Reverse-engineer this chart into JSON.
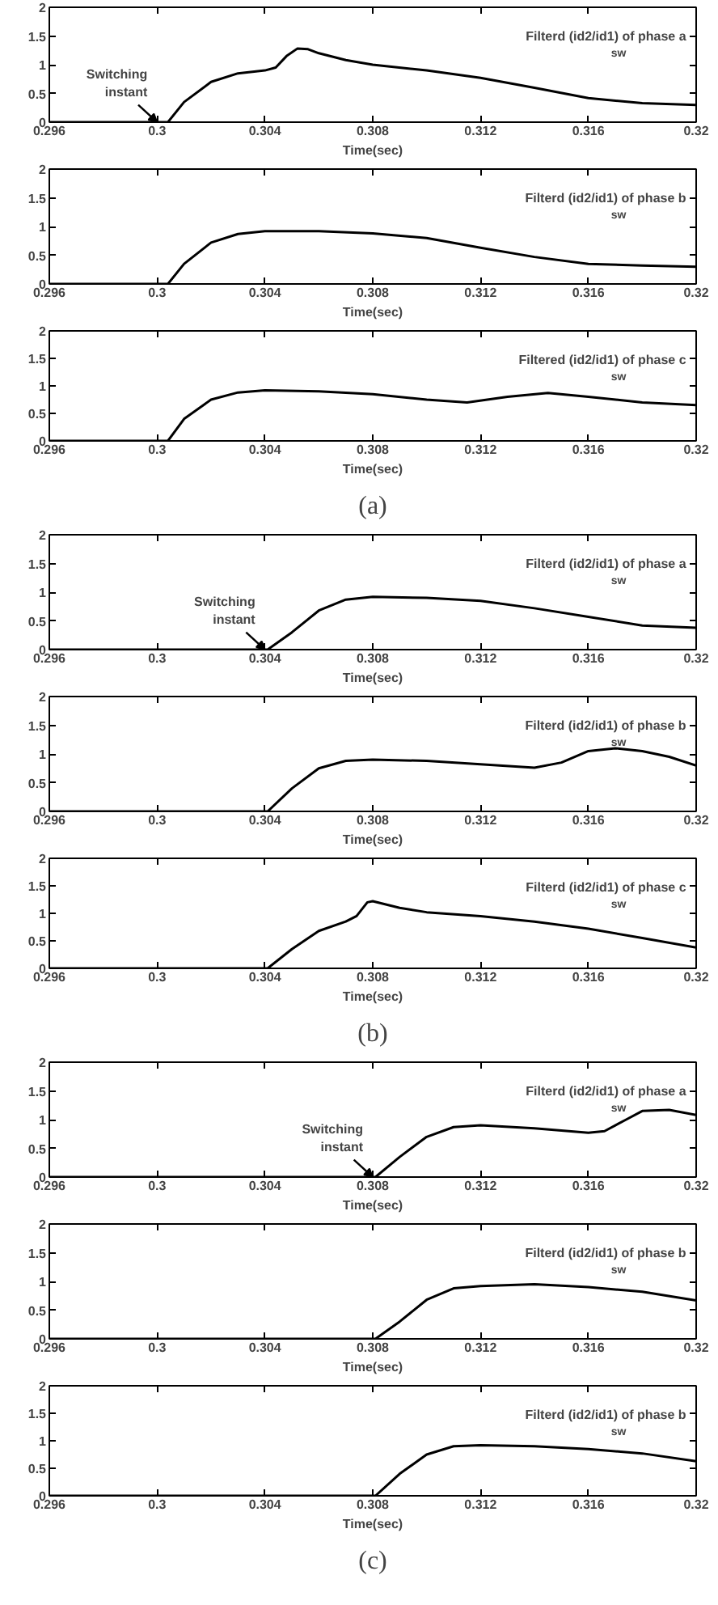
{
  "chart_data": [
    {
      "type": "line",
      "xlabel": "Time(sec)",
      "xlim": [
        0.296,
        0.32
      ],
      "xticks": [
        0.296,
        0.3,
        0.304,
        0.308,
        0.312,
        0.316,
        0.32
      ],
      "ylim": [
        0,
        2
      ],
      "yticks": [
        0,
        0.5,
        1,
        1.5,
        2
      ],
      "grid": false,
      "line_style": "solid",
      "x": [
        0.296,
        0.2998,
        0.3004,
        0.301,
        0.302,
        0.303,
        0.304,
        0.3044,
        0.3048,
        0.3052,
        0.3056,
        0.306,
        0.307,
        0.308,
        0.31,
        0.312,
        0.314,
        0.316,
        0.318,
        0.32
      ],
      "series": [
        {
          "color": "#000000",
          "values": [
            0,
            0,
            0,
            0.35,
            0.7,
            0.85,
            0.9,
            0.95,
            1.15,
            1.28,
            1.27,
            1.2,
            1.08,
            1.0,
            0.9,
            0.77,
            0.6,
            0.42,
            0.33,
            0.3
          ]
        }
      ],
      "annotations": [
        "Filterd (id2/id1)  of phase a$_{sw}$",
        {
          "text": "Switching\ninstant",
          "x": 0.3,
          "y": 0
        }
      ]
    },
    {
      "type": "line",
      "xlabel": "Time(sec)",
      "xlim": [
        0.296,
        0.32
      ],
      "xticks": [
        0.296,
        0.3,
        0.304,
        0.308,
        0.312,
        0.316,
        0.32
      ],
      "ylim": [
        0,
        2
      ],
      "yticks": [
        0,
        0.5,
        1,
        1.5,
        2
      ],
      "grid": false,
      "line_style": "solid",
      "x": [
        0.296,
        0.3004,
        0.301,
        0.302,
        0.303,
        0.304,
        0.306,
        0.308,
        0.31,
        0.312,
        0.314,
        0.316,
        0.318,
        0.32
      ],
      "series": [
        {
          "color": "#000000",
          "values": [
            0,
            0,
            0.35,
            0.72,
            0.87,
            0.92,
            0.92,
            0.88,
            0.8,
            0.63,
            0.47,
            0.35,
            0.32,
            0.3
          ]
        }
      ],
      "annotations": [
        "Filterd (id2/id1)  of phase b$_{sw}$"
      ]
    },
    {
      "type": "line",
      "xlabel": "Time(sec)",
      "xlim": [
        0.296,
        0.32
      ],
      "xticks": [
        0.296,
        0.3,
        0.304,
        0.308,
        0.312,
        0.316,
        0.32
      ],
      "ylim": [
        0,
        2
      ],
      "yticks": [
        0,
        0.5,
        1,
        1.5,
        2
      ],
      "grid": false,
      "line_style": "solid",
      "x": [
        0.296,
        0.3004,
        0.301,
        0.302,
        0.303,
        0.304,
        0.306,
        0.308,
        0.31,
        0.3115,
        0.313,
        0.3145,
        0.316,
        0.318,
        0.32
      ],
      "series": [
        {
          "color": "#000000",
          "values": [
            0,
            0,
            0.4,
            0.75,
            0.88,
            0.92,
            0.9,
            0.85,
            0.75,
            0.7,
            0.8,
            0.87,
            0.8,
            0.7,
            0.65
          ]
        }
      ],
      "annotations": [
        "Filtered (id2/id1)  of phase c$_{sw}$",
        "(a)"
      ]
    },
    {
      "type": "line",
      "xlabel": "Time(sec)",
      "xlim": [
        0.296,
        0.32
      ],
      "xticks": [
        0.296,
        0.3,
        0.304,
        0.308,
        0.312,
        0.316,
        0.32
      ],
      "ylim": [
        0,
        2
      ],
      "yticks": [
        0,
        0.5,
        1,
        1.5,
        2
      ],
      "grid": false,
      "line_style": "solid",
      "x": [
        0.296,
        0.3041,
        0.305,
        0.306,
        0.307,
        0.308,
        0.31,
        0.312,
        0.314,
        0.316,
        0.318,
        0.32
      ],
      "series": [
        {
          "color": "#000000",
          "values": [
            0,
            0,
            0.3,
            0.68,
            0.87,
            0.92,
            0.9,
            0.85,
            0.72,
            0.57,
            0.42,
            0.38
          ]
        }
      ],
      "annotations": [
        "Filterd (id2/id1)  of phase a$_{sw}$",
        {
          "text": "Switching\ninstant",
          "x": 0.304,
          "y": 0
        }
      ]
    },
    {
      "type": "line",
      "xlabel": "Time(sec)",
      "xlim": [
        0.296,
        0.32
      ],
      "xticks": [
        0.296,
        0.3,
        0.304,
        0.308,
        0.312,
        0.316,
        0.32
      ],
      "ylim": [
        0,
        2
      ],
      "yticks": [
        0,
        0.5,
        1,
        1.5,
        2
      ],
      "grid": false,
      "line_style": "solid",
      "x": [
        0.296,
        0.3041,
        0.305,
        0.306,
        0.307,
        0.308,
        0.31,
        0.312,
        0.314,
        0.315,
        0.316,
        0.317,
        0.318,
        0.319,
        0.32
      ],
      "series": [
        {
          "color": "#000000",
          "values": [
            0,
            0,
            0.4,
            0.75,
            0.88,
            0.9,
            0.88,
            0.82,
            0.76,
            0.85,
            1.05,
            1.1,
            1.05,
            0.95,
            0.8
          ]
        }
      ],
      "annotations": [
        "Filterd (id2/id1)  of phase b$_{sw}$"
      ]
    },
    {
      "type": "line",
      "xlabel": "Time(sec)",
      "xlim": [
        0.296,
        0.32
      ],
      "xticks": [
        0.296,
        0.3,
        0.304,
        0.308,
        0.312,
        0.316,
        0.32
      ],
      "ylim": [
        0,
        2
      ],
      "yticks": [
        0,
        0.5,
        1,
        1.5,
        2
      ],
      "grid": false,
      "line_style": "solid",
      "x": [
        0.296,
        0.3041,
        0.305,
        0.306,
        0.307,
        0.3074,
        0.3078,
        0.308,
        0.309,
        0.31,
        0.312,
        0.314,
        0.316,
        0.318,
        0.32
      ],
      "series": [
        {
          "color": "#000000",
          "values": [
            0,
            0,
            0.35,
            0.68,
            0.85,
            0.95,
            1.2,
            1.22,
            1.1,
            1.02,
            0.95,
            0.85,
            0.72,
            0.55,
            0.38
          ]
        }
      ],
      "annotations": [
        "Filterd (id2/id1)  of phase c$_{sw}$",
        "(b)"
      ]
    },
    {
      "type": "line",
      "xlabel": "Time(sec)",
      "xlim": [
        0.296,
        0.32
      ],
      "xticks": [
        0.296,
        0.3,
        0.304,
        0.308,
        0.312,
        0.316,
        0.32
      ],
      "ylim": [
        0,
        2
      ],
      "yticks": [
        0,
        0.5,
        1,
        1.5,
        2
      ],
      "grid": false,
      "line_style": "solid",
      "x": [
        0.296,
        0.3081,
        0.309,
        0.31,
        0.311,
        0.312,
        0.314,
        0.316,
        0.3166,
        0.3174,
        0.318,
        0.319,
        0.32
      ],
      "series": [
        {
          "color": "#000000",
          "values": [
            0,
            0,
            0.35,
            0.7,
            0.87,
            0.9,
            0.85,
            0.77,
            0.8,
            1.0,
            1.15,
            1.17,
            1.08
          ]
        }
      ],
      "annotations": [
        "Filterd (id2/id1)  of phase a$_{sw}$",
        {
          "text": "Switching\ninstant",
          "x": 0.308,
          "y": 0
        }
      ]
    },
    {
      "type": "line",
      "xlabel": "Time(sec)",
      "xlim": [
        0.296,
        0.32
      ],
      "xticks": [
        0.296,
        0.3,
        0.304,
        0.308,
        0.312,
        0.316,
        0.32
      ],
      "ylim": [
        0,
        2
      ],
      "yticks": [
        0,
        0.5,
        1,
        1.5,
        2
      ],
      "grid": false,
      "line_style": "solid",
      "x": [
        0.296,
        0.3081,
        0.309,
        0.31,
        0.311,
        0.312,
        0.314,
        0.316,
        0.318,
        0.32
      ],
      "series": [
        {
          "color": "#000000",
          "values": [
            0,
            0,
            0.3,
            0.68,
            0.88,
            0.92,
            0.95,
            0.9,
            0.82,
            0.67
          ]
        }
      ],
      "annotations": [
        "Filterd (id2/id1)  of phase b$_{sw}$"
      ]
    },
    {
      "type": "line",
      "xlabel": "Time(sec)",
      "xlim": [
        0.296,
        0.32
      ],
      "xticks": [
        0.296,
        0.3,
        0.304,
        0.308,
        0.312,
        0.316,
        0.32
      ],
      "ylim": [
        0,
        2
      ],
      "yticks": [
        0,
        0.5,
        1,
        1.5,
        2
      ],
      "grid": false,
      "line_style": "solid",
      "x": [
        0.296,
        0.3081,
        0.309,
        0.31,
        0.311,
        0.312,
        0.314,
        0.316,
        0.318,
        0.32
      ],
      "series": [
        {
          "color": "#000000",
          "values": [
            0,
            0,
            0.4,
            0.75,
            0.9,
            0.92,
            0.9,
            0.85,
            0.77,
            0.63
          ]
        }
      ],
      "annotations": [
        "Filterd (id2/id1)  of phase b$_{sw}$",
        "(c)"
      ]
    }
  ]
}
